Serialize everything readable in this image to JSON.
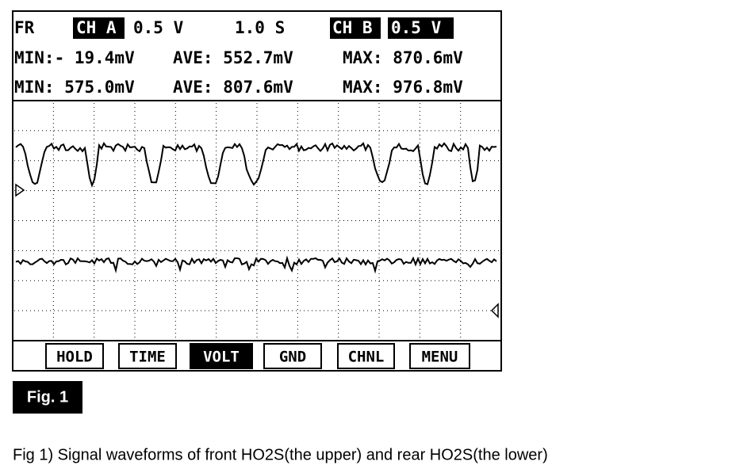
{
  "screen": {
    "header": {
      "source": "FR",
      "channel_a": "CH A",
      "channel_a_scale": "0.5 V",
      "time_scale": "1.0 S",
      "channel_b": "CH B",
      "channel_b_scale": "0.5 V"
    },
    "readings": [
      {
        "min": "MIN:- 19.4mV",
        "ave": "AVE: 552.7mV",
        "max": "MAX: 870.6mV"
      },
      {
        "min": "MIN: 575.0mV",
        "ave": "AVE: 807.6mV",
        "max": "MAX: 976.8mV"
      }
    ],
    "buttons": [
      "HOLD",
      "TIME",
      "VOLT",
      "GND",
      "CHNL",
      "MENU"
    ]
  },
  "figure_label": "Fig. 1",
  "caption": "Fig 1) Signal waveforms of front HO2S(the upper) and rear HO2S(the lower)"
}
